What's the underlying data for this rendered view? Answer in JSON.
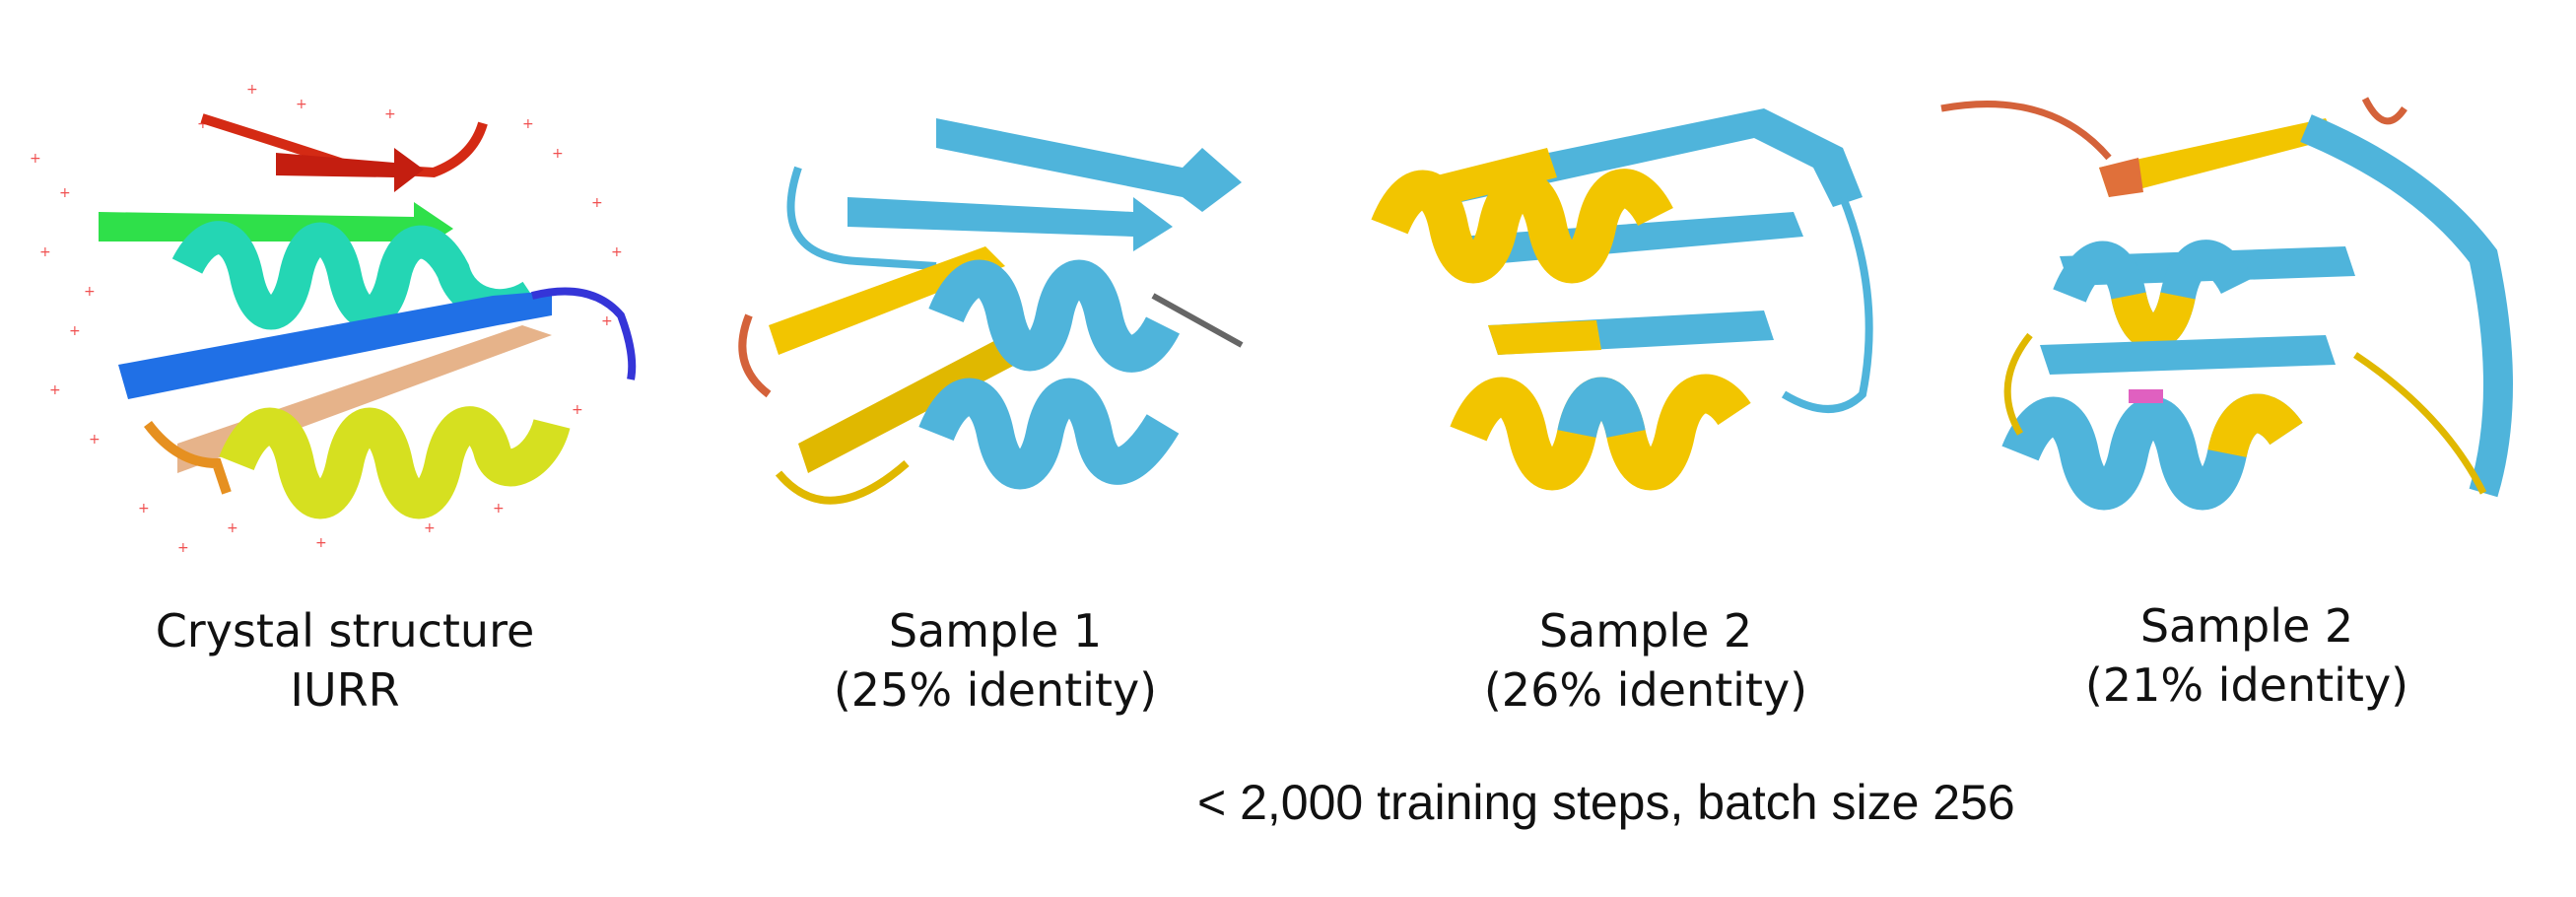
{
  "panels": [
    {
      "caption_line1": "Crystal structure",
      "caption_line2": "IURR",
      "coloring": "rainbow"
    },
    {
      "caption_line1": "Sample 1",
      "caption_line2": "(25% identity)",
      "coloring": "identity"
    },
    {
      "caption_line1": "Sample 2",
      "caption_line2": "(26% identity)",
      "coloring": "identity"
    },
    {
      "caption_line1": "Sample 2",
      "caption_line2": "(21% identity)",
      "coloring": "identity"
    }
  ],
  "footer": "< 2,000 training steps, batch size 256",
  "colors": {
    "identity_match": "#F2C500",
    "identity_mismatch": "#4FB4DB",
    "loop_accent": "#D4623A",
    "rainbow": [
      "#2b2bd6",
      "#1f7de6",
      "#22d2c8",
      "#2ad67a",
      "#d9e620",
      "#f0a020",
      "#e23a1a"
    ],
    "water": "#f05050"
  }
}
